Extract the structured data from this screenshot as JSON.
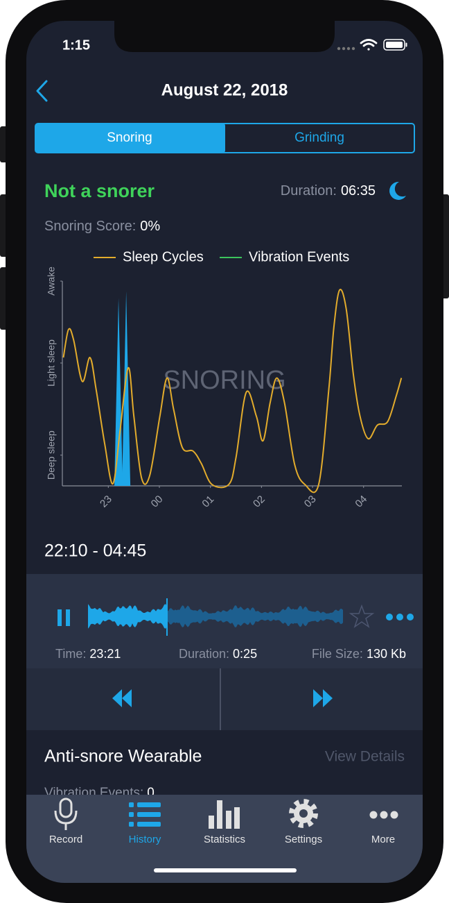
{
  "status_bar": {
    "time": "1:15"
  },
  "header": {
    "title": "August 22, 2018"
  },
  "tabs": [
    "Snoring",
    "Grinding"
  ],
  "summary": {
    "verdict": "Not a snorer",
    "duration_label": "Duration:",
    "duration": "06:35",
    "score_label": "Snoring Score:",
    "score": "0%"
  },
  "chart_data": {
    "type": "line",
    "watermark": "SNORING",
    "xlim": [
      22.1,
      28.75
    ],
    "xticks": [
      {
        "value": 23,
        "label": "23"
      },
      {
        "value": 24,
        "label": "00"
      },
      {
        "value": 25,
        "label": "01"
      },
      {
        "value": 26,
        "label": "02"
      },
      {
        "value": 27,
        "label": "03"
      },
      {
        "value": 28,
        "label": "04"
      }
    ],
    "ylim": [
      0,
      3
    ],
    "yticks": [
      {
        "value": 0.45,
        "label": "Deep sleep"
      },
      {
        "value": 1.8,
        "label": "Light sleep"
      },
      {
        "value": 3,
        "label": "Awake"
      }
    ],
    "series": [
      {
        "name": "Sleep Cycles",
        "color": "#e3ac2c",
        "x": [
          22.12,
          22.22,
          22.32,
          22.49,
          22.64,
          22.76,
          22.93,
          23.09,
          23.23,
          23.39,
          23.5,
          23.65,
          23.81,
          24.01,
          24.15,
          24.28,
          24.45,
          24.66,
          24.82,
          25.03,
          25.36,
          25.5,
          25.7,
          25.9,
          26.03,
          26.17,
          26.3,
          26.45,
          26.65,
          26.85,
          27.12,
          27.32,
          27.42,
          27.53,
          27.66,
          27.8,
          27.93,
          28.09,
          28.27,
          28.47,
          28.64,
          28.74
        ],
        "values": [
          1.88,
          2.29,
          2.14,
          1.53,
          1.88,
          1.42,
          0.61,
          0.03,
          0.81,
          1.73,
          1.02,
          0.12,
          0.15,
          1.02,
          1.58,
          1.12,
          0.56,
          0.51,
          0.33,
          0.02,
          0.02,
          0.41,
          1.37,
          1.02,
          0.66,
          1.22,
          1.58,
          1.22,
          0.31,
          0.02,
          0.02,
          1.42,
          2.34,
          2.87,
          2.59,
          1.63,
          1.02,
          0.69,
          0.89,
          0.94,
          1.32,
          1.58
        ]
      },
      {
        "name": "Vibration Events",
        "color": "#3cc45c",
        "x": [],
        "values": []
      }
    ],
    "snoring": {
      "color": "#1ea7e8",
      "x": [
        23.2,
        23.35
      ],
      "values": [
        2.75,
        2.85
      ]
    }
  },
  "range": "22:10 - 04:45",
  "recording": {
    "time_label": "Time:",
    "time": "23:21",
    "duration_label": "Duration:",
    "duration": "0:25",
    "size_label": "File Size:",
    "size": "130 Kb"
  },
  "wearable": {
    "title": "Anti-snore Wearable",
    "link": "View Details",
    "events_label": "Vibration Events:",
    "events": "0"
  },
  "tab_bar": [
    "Record",
    "History",
    "Statistics",
    "Settings",
    "More"
  ]
}
